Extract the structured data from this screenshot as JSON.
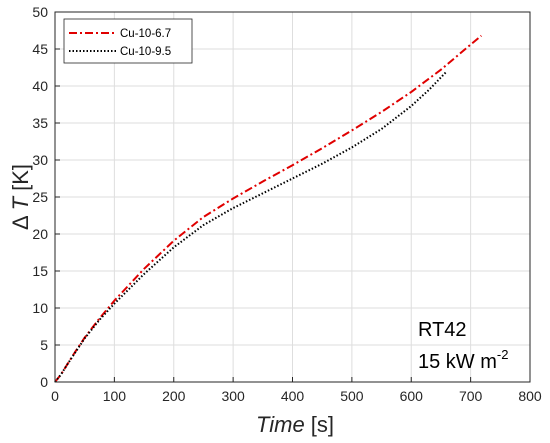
{
  "chart_data": {
    "type": "line",
    "title": "",
    "xlabel": {
      "main": "Time",
      "unit": "[s]"
    },
    "ylabel": {
      "symbol": "Δ",
      "var": "T",
      "unit": "[K]"
    },
    "xlim": [
      0,
      800
    ],
    "ylim": [
      0,
      50
    ],
    "xticks": [
      0,
      100,
      200,
      300,
      400,
      500,
      600,
      700,
      800
    ],
    "yticks": [
      0,
      5,
      10,
      15,
      20,
      25,
      30,
      35,
      40,
      45,
      50
    ],
    "grid": true,
    "legend_position": "top-left",
    "annotations": {
      "material": "RT42",
      "flux": "15 kW m",
      "flux_exponent": "-2"
    },
    "series": [
      {
        "name": "Cu-10-6.7",
        "color": "#e00000",
        "style": "dash-dot",
        "x": [
          0,
          10,
          20,
          35,
          50,
          75,
          100,
          150,
          200,
          250,
          300,
          350,
          400,
          450,
          500,
          550,
          600,
          650,
          700,
          718
        ],
        "y": [
          0,
          1.0,
          2.3,
          4.2,
          6.0,
          8.6,
          11.0,
          15.3,
          19.1,
          22.3,
          24.8,
          27.1,
          29.3,
          31.6,
          34.0,
          36.5,
          39.2,
          42.2,
          45.6,
          46.8
        ]
      },
      {
        "name": "Cu-10-9.5",
        "color": "#000000",
        "style": "dotted",
        "x": [
          0,
          10,
          20,
          35,
          50,
          75,
          100,
          150,
          200,
          250,
          300,
          350,
          400,
          450,
          500,
          550,
          600,
          630,
          660
        ],
        "y": [
          0,
          1.0,
          2.3,
          4.1,
          5.9,
          8.4,
          10.6,
          14.6,
          18.2,
          21.2,
          23.5,
          25.5,
          27.5,
          29.5,
          31.7,
          34.2,
          37.3,
          39.5,
          42.0
        ]
      }
    ]
  }
}
